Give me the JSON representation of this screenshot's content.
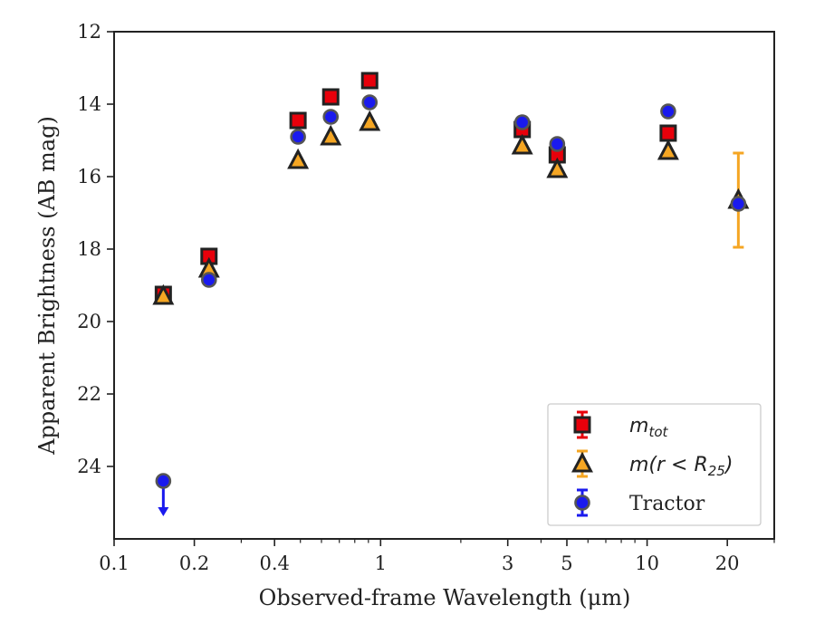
{
  "chart_data": {
    "type": "scatter",
    "xlabel": "Observed-frame Wavelength (μm)",
    "ylabel": "Apparent Brightness (AB mag)",
    "xscale": "log",
    "xlim": [
      0.1,
      30
    ],
    "ylim": [
      26,
      12
    ],
    "y_inverted": true,
    "x_ticks": [
      0.1,
      0.2,
      0.4,
      1,
      3,
      5,
      10,
      20
    ],
    "x_tick_labels": [
      "0.1",
      "0.2",
      "0.4",
      "1",
      "3",
      "5",
      "10",
      "20"
    ],
    "y_ticks": [
      12,
      14,
      16,
      18,
      20,
      22,
      24
    ],
    "y_tick_labels": [
      "12",
      "14",
      "16",
      "18",
      "20",
      "22",
      "24"
    ],
    "grid": false,
    "legend_position": "bottom-right",
    "series": [
      {
        "name": "m_tot",
        "legend_main": "m",
        "legend_sub": "tot",
        "marker": "square",
        "fill": "#e8000b",
        "edge": "#222222",
        "errorbar_color": "#e8000b",
        "x": [
          0.153,
          0.227,
          0.49,
          0.65,
          0.91,
          3.4,
          4.6,
          12.0
        ],
        "y": [
          19.25,
          18.2,
          14.45,
          13.8,
          13.35,
          14.7,
          15.4,
          14.8
        ]
      },
      {
        "name": "m(r < R25)",
        "legend_main": "m(r < R",
        "legend_sub": "25",
        "legend_tail": ")",
        "marker": "triangle",
        "fill": "#f5a623",
        "edge": "#222222",
        "errorbar_color": "#f5a623",
        "x": [
          0.153,
          0.227,
          0.49,
          0.65,
          0.91,
          3.4,
          4.6,
          12.0,
          22.0
        ],
        "y": [
          19.3,
          18.55,
          15.55,
          14.9,
          14.5,
          15.15,
          15.8,
          15.3,
          16.65
        ],
        "yerr_lower": [
          0,
          0,
          0,
          0,
          0,
          0,
          0,
          0,
          1.3
        ],
        "yerr_upper": [
          0,
          0,
          0,
          0,
          0,
          0,
          0,
          0,
          1.3
        ]
      },
      {
        "name": "Tractor",
        "marker": "circle",
        "fill": "#1a1aee",
        "edge": "#555555",
        "errorbar_color": "#1a1aee",
        "x": [
          0.153,
          0.227,
          0.49,
          0.65,
          0.91,
          3.4,
          4.6,
          12.0,
          22.0
        ],
        "y": [
          24.4,
          18.85,
          14.9,
          14.35,
          13.95,
          14.5,
          15.1,
          14.2,
          16.75
        ],
        "upper_limit": [
          true,
          false,
          false,
          false,
          false,
          false,
          false,
          false,
          false
        ]
      }
    ]
  }
}
